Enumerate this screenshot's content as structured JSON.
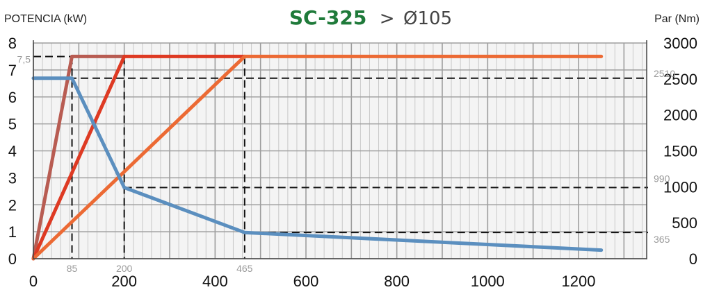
{
  "chart_data": {
    "type": "line",
    "title": "SC-325",
    "title_separator": ">",
    "subtitle": "Ø105",
    "ylabel_left": "POTENCIA (kW)",
    "ylabel_right": "Par (Nm)",
    "xlim": [
      0,
      1350
    ],
    "ylim_left": [
      0,
      8
    ],
    "ylim_right": [
      0,
      3000
    ],
    "x_ticks": [
      "0",
      "200",
      "400",
      "600",
      "800",
      "1000",
      "1200"
    ],
    "y_left_ticks": [
      "0",
      "1",
      "2",
      "3",
      "4",
      "5",
      "6",
      "7",
      "8"
    ],
    "y_right_ticks": [
      "0",
      "500",
      "1000",
      "1500",
      "2000",
      "2500",
      "3000"
    ],
    "grid": true,
    "reference_lines": {
      "x": [
        {
          "value": 85,
          "label": "85"
        },
        {
          "value": 200,
          "label": "200"
        },
        {
          "value": 465,
          "label": "465"
        }
      ],
      "y_left": [
        {
          "value": 7.5,
          "label": "7,5"
        }
      ],
      "y_right": [
        {
          "value": 2510,
          "label": "2510"
        },
        {
          "value": 990,
          "label": "990"
        },
        {
          "value": 365,
          "label": "365"
        }
      ]
    },
    "series": [
      {
        "axis": "left",
        "color": "#b85c52",
        "points": [
          [
            0,
            0
          ],
          [
            85,
            7.5
          ],
          [
            200,
            7.5
          ]
        ]
      },
      {
        "axis": "left",
        "color": "#de3a23",
        "points": [
          [
            0,
            0
          ],
          [
            200,
            7.5
          ],
          [
            465,
            7.5
          ]
        ]
      },
      {
        "axis": "left",
        "color": "#ec6a34",
        "points": [
          [
            0,
            0
          ],
          [
            465,
            7.5
          ],
          [
            1250,
            7.5
          ]
        ]
      },
      {
        "axis": "right",
        "color": "#5b8fbf",
        "points": [
          [
            0,
            2510
          ],
          [
            85,
            2510
          ],
          [
            200,
            990
          ],
          [
            465,
            365
          ],
          [
            1250,
            120
          ]
        ]
      }
    ]
  }
}
